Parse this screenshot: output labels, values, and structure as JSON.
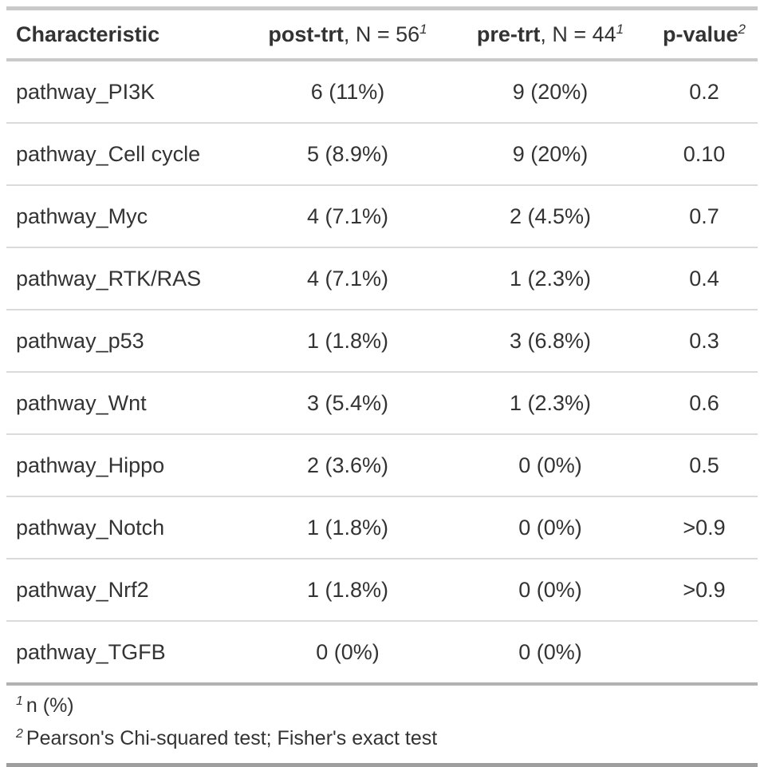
{
  "colors": {
    "text": "#333333",
    "rule_light": "#c9c9c9",
    "rule_row": "#dadada",
    "rule_footer_top": "#b2b2b2",
    "rule_bottom": "#9e9e9e",
    "background": "#ffffff"
  },
  "table": {
    "header": {
      "characteristic": "Characteristic",
      "post": {
        "bold": "post-trt",
        "rest": ", N = 56",
        "sup": "1"
      },
      "pre": {
        "bold": "pre-trt",
        "rest": ", N = 44",
        "sup": "1"
      },
      "pvalue": {
        "bold": "p-value",
        "sup": "2"
      }
    },
    "rows": [
      {
        "label": "pathway_PI3K",
        "post": "6 (11%)",
        "pre": "9 (20%)",
        "p": "0.2"
      },
      {
        "label": "pathway_Cell cycle",
        "post": "5 (8.9%)",
        "pre": "9 (20%)",
        "p": "0.10"
      },
      {
        "label": "pathway_Myc",
        "post": "4 (7.1%)",
        "pre": "2 (4.5%)",
        "p": "0.7"
      },
      {
        "label": "pathway_RTK/RAS",
        "post": "4 (7.1%)",
        "pre": "1 (2.3%)",
        "p": "0.4"
      },
      {
        "label": "pathway_p53",
        "post": "1 (1.8%)",
        "pre": "3 (6.8%)",
        "p": "0.3"
      },
      {
        "label": "pathway_Wnt",
        "post": "3 (5.4%)",
        "pre": "1 (2.3%)",
        "p": "0.6"
      },
      {
        "label": "pathway_Hippo",
        "post": "2 (3.6%)",
        "pre": "0 (0%)",
        "p": "0.5"
      },
      {
        "label": "pathway_Notch",
        "post": "1 (1.8%)",
        "pre": "0 (0%)",
        "p": ">0.9"
      },
      {
        "label": "pathway_Nrf2",
        "post": "1 (1.8%)",
        "pre": "0 (0%)",
        "p": ">0.9"
      },
      {
        "label": "pathway_TGFB",
        "post": "0 (0%)",
        "pre": "0 (0%)",
        "p": ""
      }
    ],
    "footnotes": [
      {
        "marker": "1",
        "text": "n (%)"
      },
      {
        "marker": "2",
        "text": "Pearson's Chi-squared test; Fisher's exact test"
      }
    ]
  },
  "chart_data": {
    "type": "table",
    "title": "",
    "columns": [
      "Characteristic",
      "post-trt, N = 56",
      "pre-trt, N = 44",
      "p-value"
    ],
    "rows": [
      [
        "pathway_PI3K",
        "6 (11%)",
        "9 (20%)",
        "0.2"
      ],
      [
        "pathway_Cell cycle",
        "5 (8.9%)",
        "9 (20%)",
        "0.10"
      ],
      [
        "pathway_Myc",
        "4 (7.1%)",
        "2 (4.5%)",
        "0.7"
      ],
      [
        "pathway_RTK/RAS",
        "4 (7.1%)",
        "1 (2.3%)",
        "0.4"
      ],
      [
        "pathway_p53",
        "1 (1.8%)",
        "3 (6.8%)",
        "0.3"
      ],
      [
        "pathway_Wnt",
        "3 (5.4%)",
        "1 (2.3%)",
        "0.6"
      ],
      [
        "pathway_Hippo",
        "2 (3.6%)",
        "0 (0%)",
        "0.5"
      ],
      [
        "pathway_Notch",
        "1 (1.8%)",
        "0 (0%)",
        ">0.9"
      ],
      [
        "pathway_Nrf2",
        "1 (1.8%)",
        "0 (0%)",
        ">0.9"
      ],
      [
        "pathway_TGFB",
        "0 (0%)",
        "0 (0%)",
        ""
      ]
    ],
    "group_counts": {
      "post-trt": 56,
      "pre-trt": 44
    },
    "footnotes": [
      "n (%)",
      "Pearson's Chi-squared test; Fisher's exact test"
    ]
  }
}
